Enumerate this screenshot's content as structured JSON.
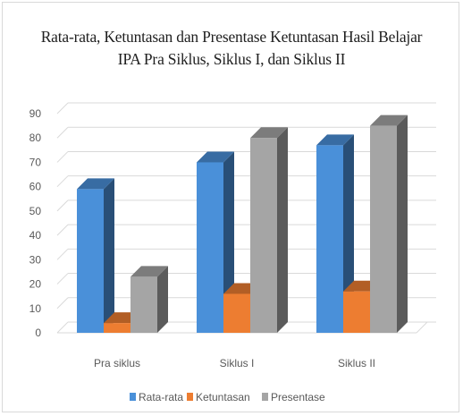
{
  "chart_data": {
    "type": "bar",
    "title_line1": "Rata-rata, Ketuntasan dan Presentase Ketuntasan  Hasil Belajar",
    "title_line2": "IPA Pra Siklus, Siklus I, dan Siklus II",
    "categories": [
      "Pra siklus",
      "Siklus I",
      "Siklus II"
    ],
    "series": [
      {
        "name": "Rata-rata",
        "values": [
          59,
          70,
          77
        ],
        "color": "#4a90d9"
      },
      {
        "name": "Ketuntasan",
        "values": [
          4,
          16,
          17
        ],
        "color": "#ed7d31"
      },
      {
        "name": "Presentase",
        "values": [
          23,
          80,
          85
        ],
        "color": "#a5a5a5"
      }
    ],
    "ylim": [
      0,
      90
    ],
    "yticks": [
      "0",
      "10",
      "20",
      "30",
      "40",
      "50",
      "60",
      "70",
      "80",
      "90"
    ],
    "grid": true,
    "legend_position": "bottom",
    "style": "3d-column"
  }
}
